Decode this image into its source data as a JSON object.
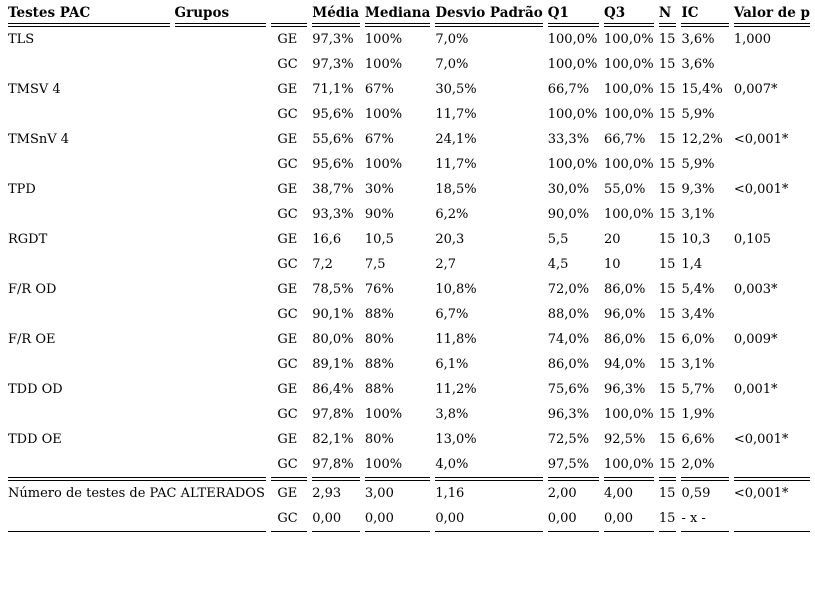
{
  "table": {
    "headers": [
      "Testes PAC",
      "Grupos",
      "",
      "Média",
      "Mediana",
      "Desvio Padrão",
      "Q1",
      "Q3",
      "N",
      "IC",
      "Valor de p"
    ],
    "rows": [
      {
        "test": "TLS",
        "group": "GE",
        "values": [
          "97,3%",
          "100%",
          "7,0%",
          "100,0%",
          "100,0%",
          "15",
          "3,6%",
          "1,000"
        ],
        "rule": "none"
      },
      {
        "test": "",
        "group": "GC",
        "values": [
          "97,3%",
          "100%",
          "7,0%",
          "100,0%",
          "100,0%",
          "15",
          "3,6%",
          ""
        ],
        "rule": "none"
      },
      {
        "test": "TMSV 4",
        "group": "GE",
        "values": [
          "71,1%",
          "67%",
          "30,5%",
          "66,7%",
          "100,0%",
          "15",
          "15,4%",
          "0,007*"
        ],
        "rule": "none"
      },
      {
        "test": "",
        "group": "GC",
        "values": [
          "95,6%",
          "100%",
          "11,7%",
          "100,0%",
          "100,0%",
          "15",
          "5,9%",
          ""
        ],
        "rule": "none"
      },
      {
        "test": "TMSnV 4",
        "group": "GE",
        "values": [
          "55,6%",
          "67%",
          "24,1%",
          "33,3%",
          "66,7%",
          "15",
          "12,2%",
          "<0,001*"
        ],
        "rule": "none"
      },
      {
        "test": "",
        "group": "GC",
        "values": [
          "95,6%",
          "100%",
          "11,7%",
          "100,0%",
          "100,0%",
          "15",
          "5,9%",
          ""
        ],
        "rule": "none"
      },
      {
        "test": "TPD",
        "group": "GE",
        "values": [
          "38,7%",
          "30%",
          "18,5%",
          "30,0%",
          "55,0%",
          "15",
          "9,3%",
          "<0,001*"
        ],
        "rule": "none"
      },
      {
        "test": "",
        "group": "GC",
        "values": [
          "93,3%",
          "90%",
          "6,2%",
          "90,0%",
          "100,0%",
          "15",
          "3,1%",
          ""
        ],
        "rule": "none"
      },
      {
        "test": "RGDT",
        "group": "GE",
        "values": [
          "16,6",
          "10,5",
          "20,3",
          "5,5",
          "20",
          "15",
          "10,3",
          "0,105"
        ],
        "rule": "none"
      },
      {
        "test": "",
        "group": "GC",
        "values": [
          "7,2",
          "7,5",
          "2,7",
          "4,5",
          "10",
          "15",
          "1,4",
          ""
        ],
        "rule": "none"
      },
      {
        "test": "F/R OD",
        "group": "GE",
        "values": [
          "78,5%",
          "76%",
          "10,8%",
          "72,0%",
          "86,0%",
          "15",
          "5,4%",
          "0,003*"
        ],
        "rule": "none"
      },
      {
        "test": "",
        "group": "GC",
        "values": [
          "90,1%",
          "88%",
          "6,7%",
          "88,0%",
          "96,0%",
          "15",
          "3,4%",
          ""
        ],
        "rule": "none"
      },
      {
        "test": "F/R OE",
        "group": "GE",
        "values": [
          "80,0%",
          "80%",
          "11,8%",
          "74,0%",
          "86,0%",
          "15",
          "6,0%",
          "0,009*"
        ],
        "rule": "none"
      },
      {
        "test": "",
        "group": "GC",
        "values": [
          "89,1%",
          "88%",
          "6,1%",
          "86,0%",
          "94,0%",
          "15",
          "3,1%",
          ""
        ],
        "rule": "none"
      },
      {
        "test": "TDD OD",
        "group": "GE",
        "values": [
          "86,4%",
          "88%",
          "11,2%",
          "75,6%",
          "96,3%",
          "15",
          "5,7%",
          "0,001*"
        ],
        "rule": "none"
      },
      {
        "test": "",
        "group": "GC",
        "values": [
          "97,8%",
          "100%",
          "3,8%",
          "96,3%",
          "100,0%",
          "15",
          "1,9%",
          ""
        ],
        "rule": "none"
      },
      {
        "test": "TDD OE",
        "group": "GE",
        "values": [
          "82,1%",
          "80%",
          "13,0%",
          "72,5%",
          "92,5%",
          "15",
          "6,6%",
          "<0,001*"
        ],
        "rule": "none"
      },
      {
        "test": "",
        "group": "GC",
        "values": [
          "97,8%",
          "100%",
          "4,0%",
          "97,5%",
          "100,0%",
          "15",
          "2,0%",
          ""
        ],
        "rule": "double"
      },
      {
        "test": "Número de testes de PAC ALTERADOS",
        "group": "GE",
        "values": [
          "2,93",
          "3,00",
          "1,16",
          "2,00",
          "4,00",
          "15",
          "0,59",
          "<0,001*"
        ],
        "rule": "none"
      },
      {
        "test": "",
        "group": "GC",
        "values": [
          "0,00",
          "0,00",
          "0,00",
          "0,00",
          "0,00",
          "15",
          "- x -",
          ""
        ],
        "rule": "single"
      }
    ]
  }
}
